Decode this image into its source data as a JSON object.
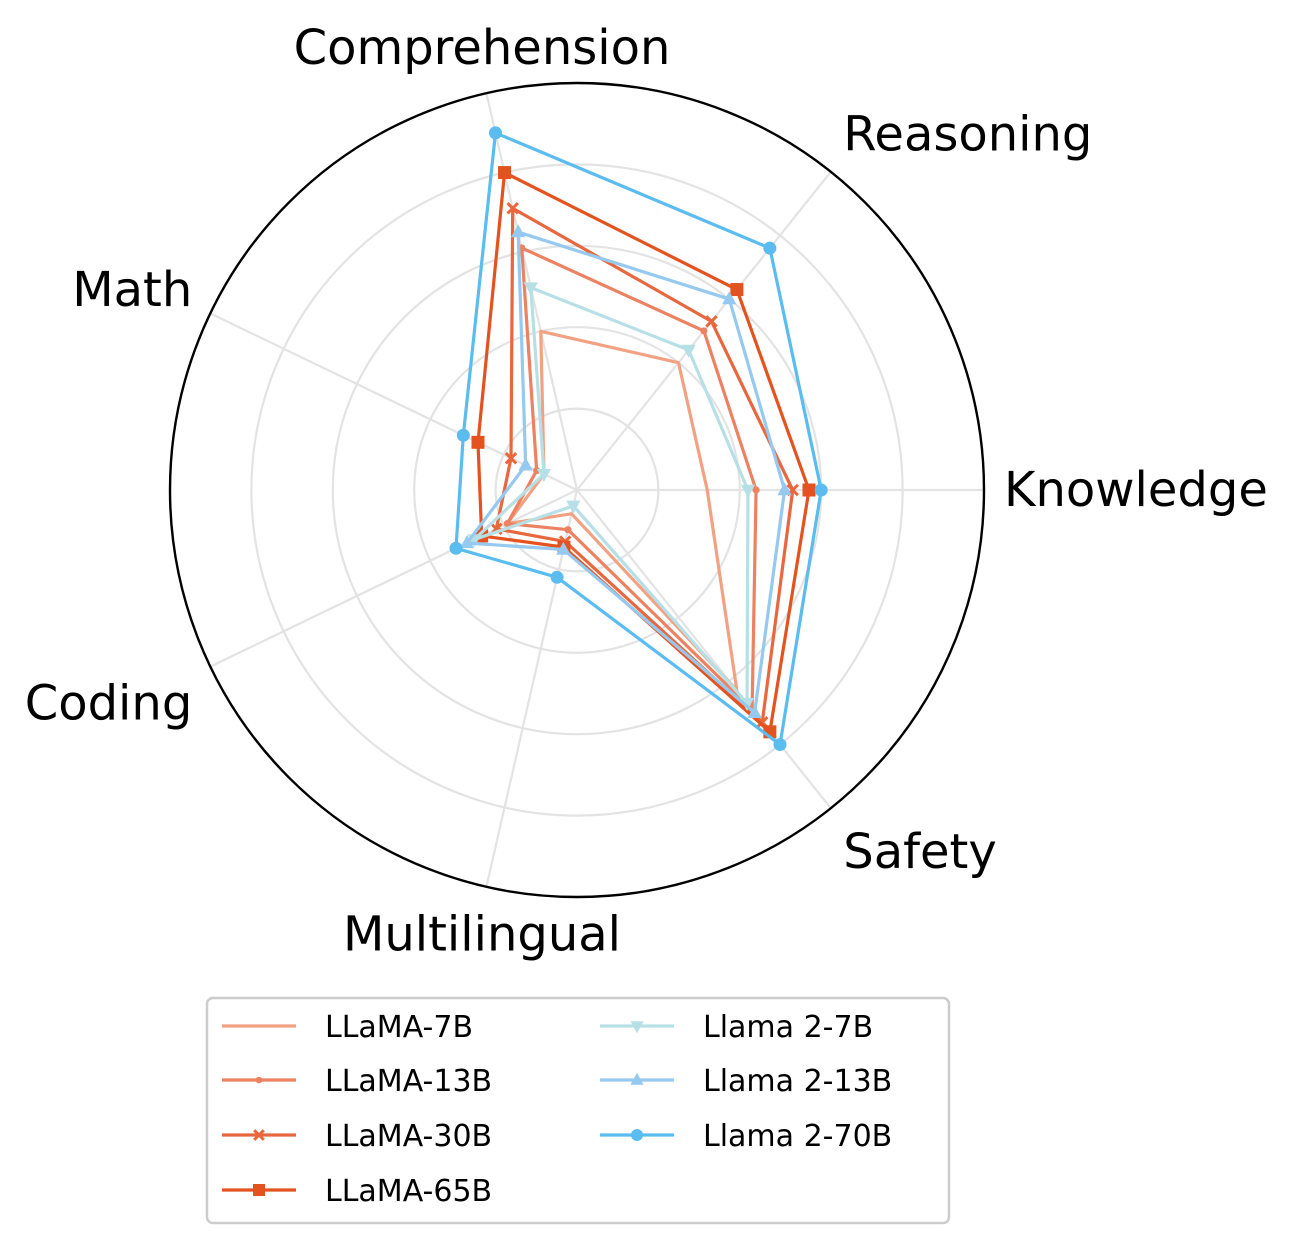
{
  "chart_data": {
    "type": "radar",
    "axes": [
      "Knowledge",
      "Reasoning",
      "Comprehension",
      "Math",
      "Coding",
      "Multilingual",
      "Safety"
    ],
    "rmax": 5,
    "grid": true,
    "grid_levels": 5,
    "legend_placement": "bottom",
    "series": [
      {
        "name": "LLaMA-7B",
        "color": "#f2a283",
        "marker": "none",
        "values": [
          1.6,
          2.0,
          2.0,
          0.45,
          0.95,
          0.3,
          3.15
        ]
      },
      {
        "name": "LLaMA-13B",
        "color": "#ec8261",
        "marker": "point",
        "values": [
          2.2,
          2.5,
          3.05,
          0.55,
          0.95,
          0.5,
          3.45
        ]
      },
      {
        "name": "LLaMA-30B",
        "color": "#e8673e",
        "marker": "x",
        "values": [
          2.65,
          2.65,
          3.55,
          0.9,
          1.1,
          0.65,
          3.65
        ]
      },
      {
        "name": "LLaMA-65B",
        "color": "#e4531f",
        "marker": "square",
        "values": [
          2.85,
          3.15,
          4.0,
          1.35,
          1.3,
          0.72,
          3.8
        ]
      },
      {
        "name": "Llama 2-7B",
        "color": "#b7e0e6",
        "marker": "triangle-down",
        "values": [
          2.1,
          2.2,
          2.55,
          0.45,
          1.4,
          0.2,
          3.35
        ]
      },
      {
        "name": "Llama 2-13B",
        "color": "#96c9ef",
        "marker": "triangle-up",
        "values": [
          2.55,
          3.0,
          3.25,
          0.7,
          1.5,
          0.75,
          3.5
        ]
      },
      {
        "name": "Llama 2-70B",
        "color": "#5bbcf0",
        "marker": "circle",
        "values": [
          3.0,
          3.8,
          4.5,
          1.55,
          1.65,
          1.1,
          4.0
        ]
      }
    ]
  }
}
